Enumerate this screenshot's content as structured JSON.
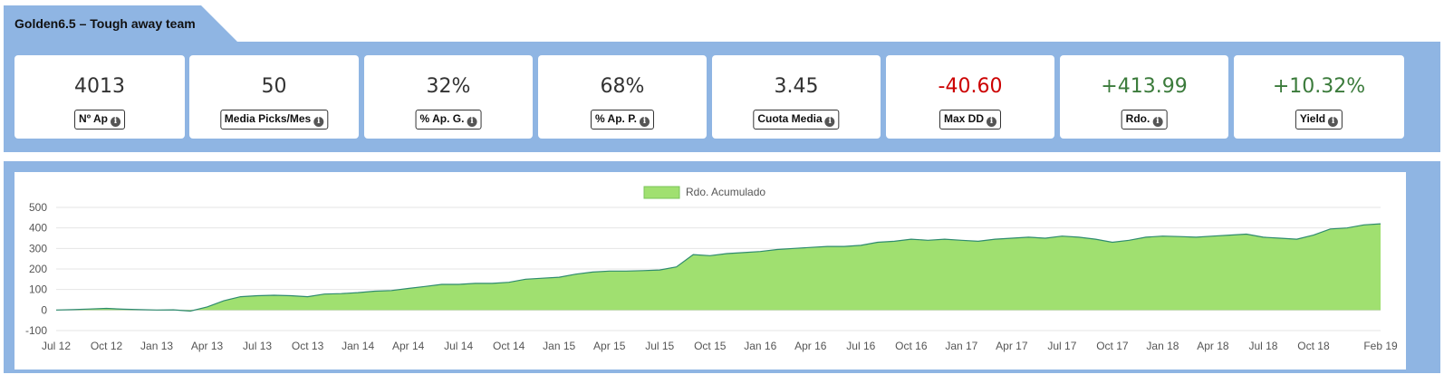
{
  "header": {
    "title": "Golden6.5 – Tough away team"
  },
  "stats": [
    {
      "value": "4013",
      "label": "Nº Ap",
      "tone": "neutral"
    },
    {
      "value": "50",
      "label": "Media Picks/Mes",
      "tone": "neutral"
    },
    {
      "value": "32%",
      "label": "% Ap. G.",
      "tone": "neutral"
    },
    {
      "value": "68%",
      "label": "% Ap. P.",
      "tone": "neutral"
    },
    {
      "value": "3.45",
      "label": "Cuota Media",
      "tone": "neutral"
    },
    {
      "value": "-40.60",
      "label": "Max DD",
      "tone": "negative"
    },
    {
      "value": "+413.99",
      "label": "Rdo.",
      "tone": "positive"
    },
    {
      "value": "+10.32%",
      "label": "Yield",
      "tone": "positive"
    }
  ],
  "icons": {
    "stat_info": "info-icon"
  },
  "colors": {
    "band": "#8fb5e3",
    "fill": "#a0e070",
    "line": "#2e8b6e",
    "negative": "#cc0000",
    "positive": "#3b7b3b"
  },
  "chart_data": {
    "type": "area",
    "legend": {
      "label": "Rdo. Acumulado",
      "position": "top-center"
    },
    "ylim": [
      -100,
      500
    ],
    "yticks": [
      500,
      400,
      300,
      200,
      100,
      0,
      -100
    ],
    "grid": true,
    "xticks": [
      "Jul 12",
      "Oct 12",
      "Jan 13",
      "Apr 13",
      "Jul 13",
      "Oct 13",
      "Jan 14",
      "Apr 14",
      "Jul 14",
      "Oct 14",
      "Jan 15",
      "Apr 15",
      "Jul 15",
      "Oct 15",
      "Jan 16",
      "Apr 16",
      "Jul 16",
      "Oct 16",
      "Jan 17",
      "Apr 17",
      "Jul 17",
      "Oct 17",
      "Jan 18",
      "Apr 18",
      "Jul 18",
      "Oct 18",
      "Feb 19"
    ],
    "x": [
      "2012-07",
      "2012-08",
      "2012-09",
      "2012-10",
      "2012-11",
      "2012-12",
      "2013-01",
      "2013-02",
      "2013-03",
      "2013-04",
      "2013-05",
      "2013-06",
      "2013-07",
      "2013-08",
      "2013-09",
      "2013-10",
      "2013-11",
      "2013-12",
      "2014-01",
      "2014-02",
      "2014-03",
      "2014-04",
      "2014-05",
      "2014-06",
      "2014-07",
      "2014-08",
      "2014-09",
      "2014-10",
      "2014-11",
      "2014-12",
      "2015-01",
      "2015-02",
      "2015-03",
      "2015-04",
      "2015-05",
      "2015-06",
      "2015-07",
      "2015-08",
      "2015-09",
      "2015-10",
      "2015-11",
      "2015-12",
      "2016-01",
      "2016-02",
      "2016-03",
      "2016-04",
      "2016-05",
      "2016-06",
      "2016-07",
      "2016-08",
      "2016-09",
      "2016-10",
      "2016-11",
      "2016-12",
      "2017-01",
      "2017-02",
      "2017-03",
      "2017-04",
      "2017-05",
      "2017-06",
      "2017-07",
      "2017-08",
      "2017-09",
      "2017-10",
      "2017-11",
      "2017-12",
      "2018-01",
      "2018-02",
      "2018-03",
      "2018-04",
      "2018-05",
      "2018-06",
      "2018-07",
      "2018-08",
      "2018-09",
      "2018-10",
      "2018-11",
      "2018-12",
      "2019-01",
      "2019-02"
    ],
    "series": [
      {
        "values": [
          0,
          2,
          5,
          8,
          4,
          2,
          0,
          1,
          -5,
          15,
          45,
          65,
          70,
          72,
          70,
          65,
          78,
          80,
          85,
          92,
          95,
          105,
          115,
          125,
          125,
          130,
          130,
          135,
          150,
          155,
          160,
          175,
          185,
          190,
          190,
          192,
          195,
          210,
          270,
          265,
          275,
          280,
          285,
          295,
          300,
          305,
          310,
          310,
          315,
          330,
          335,
          345,
          340,
          345,
          340,
          335,
          345,
          350,
          355,
          350,
          360,
          355,
          345,
          330,
          340,
          355,
          360,
          358,
          355,
          360,
          365,
          370,
          355,
          350,
          345,
          365,
          395,
          400,
          415,
          420
        ]
      }
    ]
  }
}
